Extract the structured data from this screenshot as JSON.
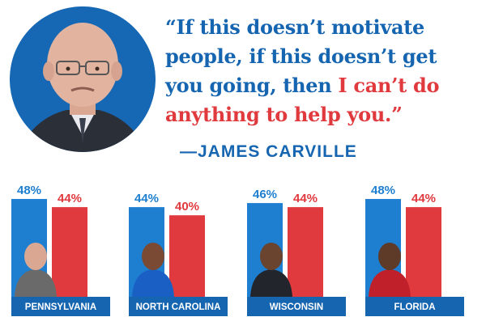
{
  "quote": {
    "line1": "“If this doesn’t motivate",
    "line2": "people, if this doesn’t get",
    "line3_a": "you going, then ",
    "line3_b": "I can’t do",
    "line4": "anything to help you.”",
    "author": "—JAMES CARVILLE"
  },
  "colors": {
    "dem": "#1e7fd0",
    "rep": "#e03a3e",
    "label_bg": "#1565b0"
  },
  "chart_data": {
    "type": "bar",
    "categories": [
      "PENNSYLVANIA",
      "NORTH CAROLINA",
      "WISCONSIN",
      "FLORIDA"
    ],
    "series": [
      {
        "values": [
          48,
          44,
          46,
          48
        ],
        "labels": [
          "48%",
          "44%",
          "46%",
          "48%"
        ]
      },
      {
        "values": [
          44,
          40,
          44,
          44
        ],
        "labels": [
          "44%",
          "40%",
          "44%",
          "44%"
        ]
      }
    ],
    "ylim": [
      0,
      50
    ]
  }
}
